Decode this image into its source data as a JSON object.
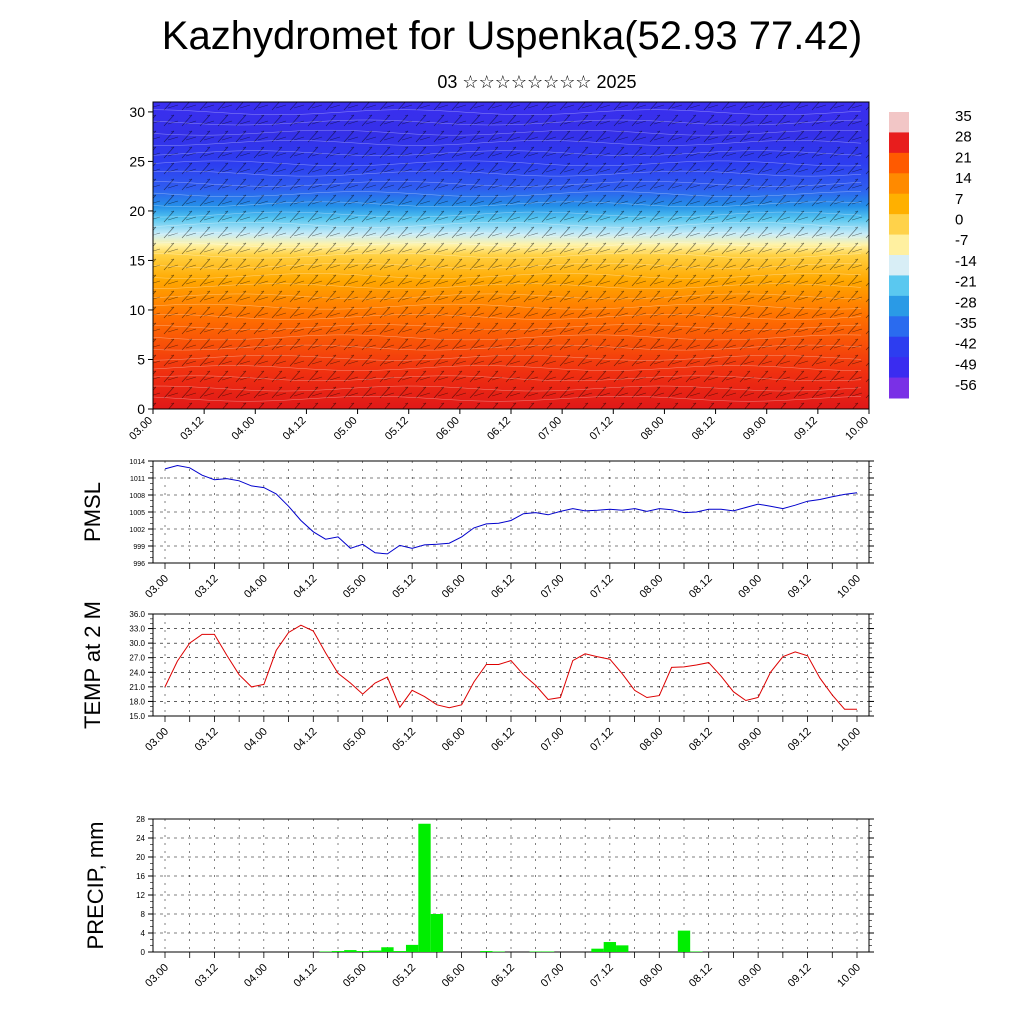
{
  "title": "Kazhydromet for Uspenka(52.93 77.42)",
  "subtitle": "03 ☆☆☆☆☆☆☆☆ 2025",
  "time_ticks": [
    "03.00",
    "03.12",
    "04.00",
    "04.12",
    "05.00",
    "05.12",
    "06.00",
    "06.12",
    "07.00",
    "07.12",
    "08.00",
    "08.12",
    "09.00",
    "09.12",
    "10.00"
  ],
  "chart_data": [
    {
      "type": "heatmap",
      "yticks": [
        "0",
        "5",
        "10",
        "15",
        "20",
        "25",
        "30"
      ],
      "ylim": [
        0,
        31
      ],
      "colorbar_labels": [
        "35",
        "28",
        "21",
        "14",
        "7",
        "0",
        "-7",
        "-14",
        "-21",
        "-28",
        "-35",
        "-42",
        "-49",
        "-56"
      ],
      "colorbar_colors": [
        "#f2c6c6",
        "#e81d1d",
        "#ff5a00",
        "#ff8a00",
        "#ffb000",
        "#ffd24a",
        "#fff0a0",
        "#d8eef6",
        "#5ac8f0",
        "#2a9ae6",
        "#2a6bef",
        "#2d3df0",
        "#3a2cf0",
        "#7a30e6"
      ],
      "x_range": [
        0,
        168
      ],
      "y_range_km": [
        0,
        31
      ],
      "description_levels": [
        {
          "h": 0,
          "t": 30
        },
        {
          "h": 5,
          "t": 14
        },
        {
          "h": 10,
          "t": 0
        },
        {
          "h": 15,
          "t": -10
        },
        {
          "h": 18,
          "t": -25
        },
        {
          "h": 20,
          "t": -42
        },
        {
          "h": 23,
          "t": -52
        },
        {
          "h": 31,
          "t": -58
        }
      ]
    },
    {
      "type": "line",
      "ylabel": "PMSL",
      "yticks": [
        "1014",
        "1011",
        "1008",
        "1005",
        "1002",
        "999",
        "996"
      ],
      "ylim": [
        996,
        1014
      ],
      "color": "#0000cc",
      "x": [
        0,
        3,
        6,
        9,
        12,
        15,
        18,
        21,
        24,
        27,
        30,
        33,
        36,
        39,
        42,
        45,
        48,
        51,
        54,
        57,
        60,
        63,
        66,
        69,
        72,
        75,
        78,
        81,
        84,
        87,
        90,
        93,
        96,
        99,
        102,
        105,
        108,
        111,
        114,
        117,
        120,
        123,
        126,
        129,
        132,
        135,
        138,
        141,
        144,
        147,
        150,
        153,
        156,
        159,
        162,
        165,
        168
      ],
      "values": [
        1012.6,
        1013.2,
        1012.8,
        1011.5,
        1010.7,
        1010.9,
        1010.5,
        1009.6,
        1009.3,
        1008.2,
        1006,
        1003.5,
        1001.5,
        1000.2,
        1000.6,
        998.6,
        999.3,
        997.8,
        997.6,
        999.1,
        998.6,
        999.2,
        999.3,
        999.5,
        1000.6,
        1002.2,
        1002.9,
        1003,
        1003.5,
        1004.7,
        1004.9,
        1004.5,
        1005.1,
        1005.6,
        1005.2,
        1005.3,
        1005.5,
        1005.3,
        1005.6,
        1005.1,
        1005.6,
        1005.4,
        1004.9,
        1005,
        1005.5,
        1005.5,
        1005.2,
        1005.8,
        1006.4,
        1006,
        1005.6,
        1006.2,
        1006.9,
        1007.2,
        1007.7,
        1008.1,
        1008.4
      ]
    },
    {
      "type": "line",
      "ylabel": "TEMP at 2 M",
      "yticks": [
        "36.0",
        "33.0",
        "30.0",
        "27.0",
        "24.0",
        "21.0",
        "18.0",
        "15.0"
      ],
      "ylim": [
        15,
        36
      ],
      "color": "#dd0000",
      "x": [
        0,
        3,
        6,
        9,
        12,
        15,
        18,
        21,
        24,
        27,
        30,
        33,
        36,
        39,
        42,
        45,
        48,
        51,
        54,
        57,
        60,
        63,
        66,
        69,
        72,
        75,
        78,
        81,
        84,
        87,
        90,
        93,
        96,
        99,
        102,
        105,
        108,
        111,
        114,
        117,
        120,
        123,
        126,
        129,
        132,
        135,
        138,
        141,
        144,
        147,
        150,
        153,
        156,
        159,
        162,
        165,
        168
      ],
      "values": [
        21,
        26.3,
        30,
        31.8,
        31.8,
        27.5,
        23.5,
        21,
        21.5,
        28.5,
        32.2,
        33.7,
        32.5,
        28,
        23.8,
        21.8,
        19.5,
        21.8,
        23,
        16.8,
        20.3,
        19,
        17.3,
        16.7,
        17.3,
        22,
        25.6,
        25.6,
        26.4,
        23.5,
        21.3,
        18.4,
        18.8,
        26.4,
        27.8,
        27.2,
        26.7,
        23.7,
        20.3,
        18.8,
        19.2,
        25,
        25.1,
        25.5,
        26,
        23.2,
        20,
        18.2,
        18.8,
        24,
        27.2,
        28.2,
        27.4,
        22.8,
        19.3,
        16.4,
        16.4
      ]
    },
    {
      "type": "bar",
      "ylabel": "PRECIP, mm",
      "yticks": [
        "28",
        "24",
        "20",
        "16",
        "12",
        "8",
        "4",
        "0"
      ],
      "ylim": [
        0,
        28
      ],
      "color": "#00ee00",
      "x": [
        39,
        42,
        45,
        48,
        51,
        54,
        57,
        60,
        63,
        66,
        69,
        72,
        75,
        78,
        81,
        84,
        87,
        90,
        93,
        96,
        99,
        102,
        105,
        108,
        111,
        114,
        117,
        120,
        123,
        126,
        129
      ],
      "values": [
        0.1,
        0.2,
        0.4,
        0.2,
        0.3,
        1,
        0.2,
        1.5,
        27,
        8,
        0,
        0,
        0,
        0.2,
        0.1,
        0,
        0,
        0.1,
        0.1,
        0,
        0,
        0,
        0.7,
        2.1,
        1.4,
        0,
        0,
        0,
        0,
        4.5,
        0.1
      ]
    }
  ]
}
